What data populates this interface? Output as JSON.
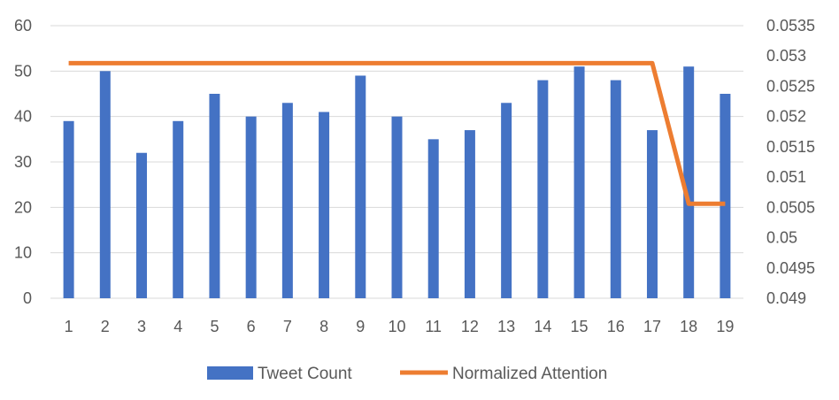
{
  "chart_data": {
    "type": "bar+line",
    "title": "",
    "categories": [
      "1",
      "2",
      "3",
      "4",
      "5",
      "6",
      "7",
      "8",
      "9",
      "10",
      "11",
      "12",
      "13",
      "14",
      "15",
      "16",
      "17",
      "18",
      "19"
    ],
    "series": [
      {
        "name": "Tweet Count",
        "type": "bar",
        "axis": "left",
        "color": "#4472C4",
        "values": [
          39,
          50,
          32,
          39,
          45,
          40,
          43,
          41,
          49,
          40,
          35,
          37,
          43,
          48,
          51,
          48,
          37,
          51,
          45
        ]
      },
      {
        "name": "Normalized Attention",
        "type": "line",
        "axis": "right",
        "color": "#ED7D31",
        "values": [
          0.05288,
          0.05288,
          0.05288,
          0.05288,
          0.05288,
          0.05288,
          0.05288,
          0.05288,
          0.05288,
          0.05288,
          0.05288,
          0.05288,
          0.05288,
          0.05288,
          0.05288,
          0.05288,
          0.05288,
          0.05056,
          0.05056
        ]
      }
    ],
    "y_left": {
      "min": 0,
      "max": 60,
      "ticks": [
        "0",
        "10",
        "20",
        "30",
        "40",
        "50",
        "60"
      ]
    },
    "y_right": {
      "min": 0.049,
      "max": 0.0535,
      "ticks": [
        "0.049",
        "0.0495",
        "0.05",
        "0.0505",
        "0.051",
        "0.0515",
        "0.052",
        "0.0525",
        "0.053",
        "0.0535"
      ]
    },
    "grid": true,
    "legend_position": "bottom"
  }
}
